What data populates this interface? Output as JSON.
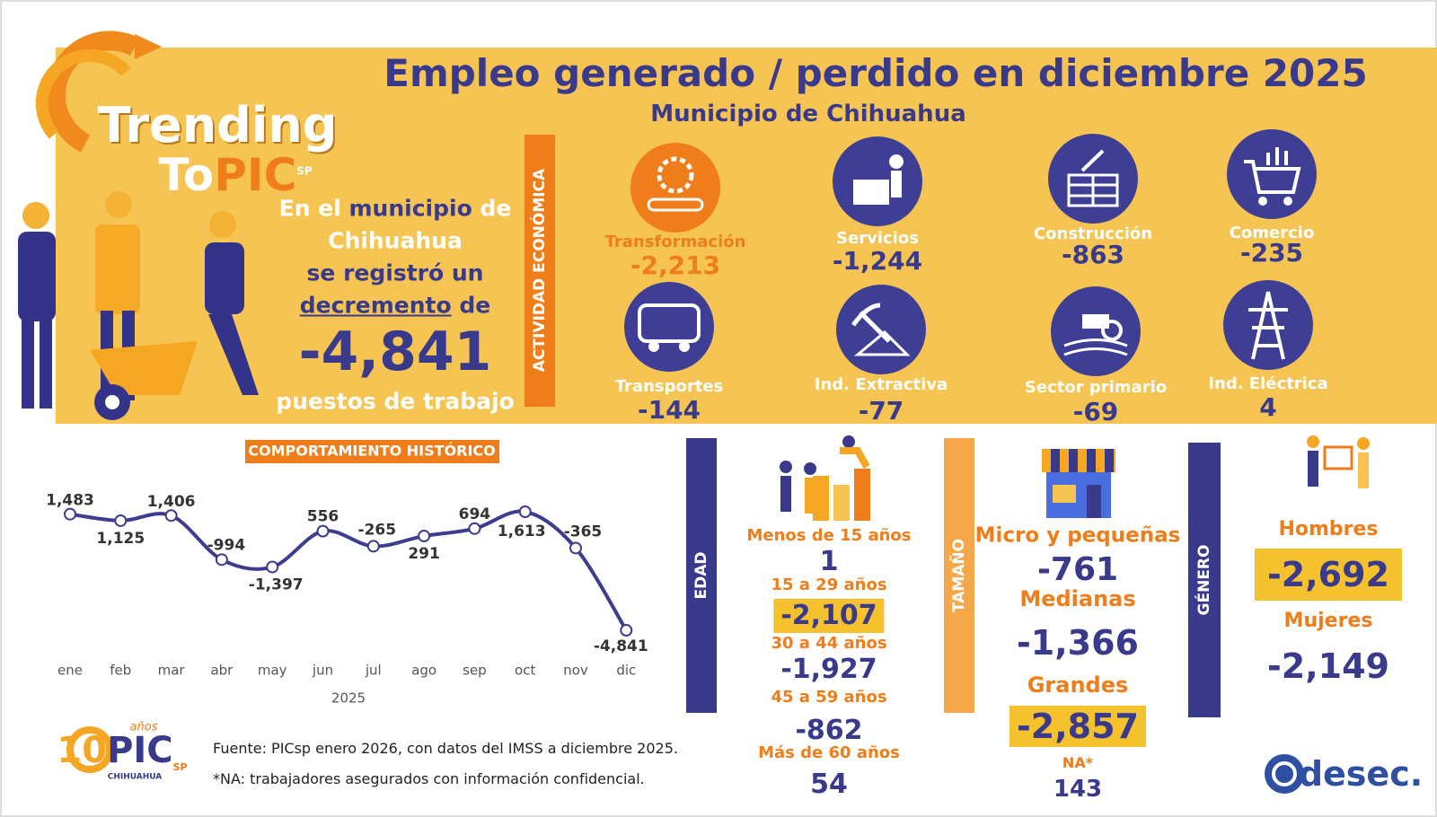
{
  "header": {
    "title": "Empleo generado / perdido en diciembre 2025",
    "subtitle": "Municipio de Chihuahua"
  },
  "logo": {
    "trending": "Trending",
    "to": "To",
    "pic": "PIC",
    "sp": "SP"
  },
  "summary": {
    "parts": [
      "En el",
      "municipio",
      "de",
      "Chihuahua",
      "se registró un",
      "decremento",
      "de"
    ],
    "value": "-4,841",
    "unit": "puestos de trabajo"
  },
  "economic_activity": {
    "label": "ACTIVIDAD ECONÓMICA",
    "sectors": [
      {
        "name": "Transformación",
        "value": "-2,213"
      },
      {
        "name": "Servicios",
        "value": "-1,244"
      },
      {
        "name": "Construcción",
        "value": "-863"
      },
      {
        "name": "Comercio",
        "value": "-235"
      },
      {
        "name": "Transportes",
        "value": "-144"
      },
      {
        "name": "Ind. Extractiva",
        "value": "-77"
      },
      {
        "name": "Sector primario",
        "value": "-69"
      },
      {
        "name": "Ind. Eléctrica",
        "value": "4"
      }
    ]
  },
  "chart_data": {
    "type": "line",
    "title": "COMPORTAMIENTO HISTÓRICO",
    "x_label": "2025",
    "color": "#3d3d8f",
    "categories": [
      "ene",
      "feb",
      "mar",
      "abr",
      "may",
      "jun",
      "jul",
      "ago",
      "sep",
      "oct",
      "nov",
      "dic"
    ],
    "values": [
      1483,
      1125,
      1406,
      -994,
      -1397,
      556,
      -265,
      291,
      694,
      1613,
      -365,
      -4841
    ],
    "value_labels": [
      "1,483",
      "1,125",
      "1,406",
      "-994",
      "-1,397",
      "556",
      "-265",
      "291",
      "694",
      "1,613",
      "-365",
      "-4,841"
    ]
  },
  "age": {
    "label": "EDAD",
    "groups": [
      {
        "name": "Menos de 15 años",
        "value": "1"
      },
      {
        "name": "15 a 29 años",
        "value": "-2,107"
      },
      {
        "name": "30 a 44 años",
        "value": "-1,927"
      },
      {
        "name": "45 a 59 años",
        "value": "-862"
      },
      {
        "name": "Más de 60 años",
        "value": "54"
      }
    ]
  },
  "size": {
    "label": "TAMAÑO",
    "groups": [
      {
        "name": "Micro y pequeñas",
        "value": "-761"
      },
      {
        "name": "Medianas",
        "value": "-1,366"
      },
      {
        "name": "Grandes",
        "value": "-2,857"
      },
      {
        "name": "NA*",
        "value": "143"
      }
    ]
  },
  "gender": {
    "label": "GÉNERO",
    "groups": [
      {
        "name": "Hombres",
        "value": "-2,692"
      },
      {
        "name": "Mujeres",
        "value": "-2,149"
      }
    ]
  },
  "footer": {
    "source": "Fuente: PICsp enero 2026, con datos del IMSS a diciembre 2025.",
    "note": "*NA: trabajadores asegurados con información confidencial.",
    "logo": {
      "anniversary": "10",
      "years": "años",
      "pic": "PIC",
      "sp": "SP",
      "city": "CHIHUAHUA"
    },
    "brand": "desec."
  }
}
